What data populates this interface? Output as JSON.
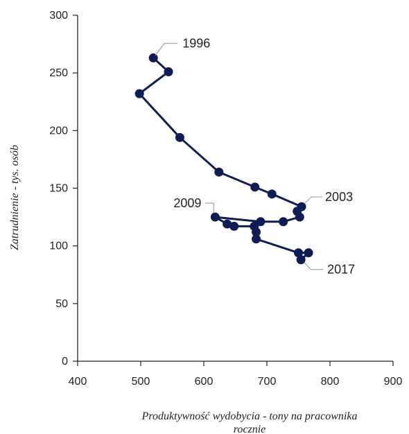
{
  "chart_data": {
    "type": "scatter",
    "xlabel_lines": [
      "Produktywność wydobycia - tony na pracownika",
      "rocznie"
    ],
    "ylabel": "Zatrudnienie - tys. osób",
    "xlim": [
      400,
      900
    ],
    "ylim": [
      0,
      300
    ],
    "x_ticks": [
      "400",
      "500",
      "600",
      "700",
      "800",
      "900"
    ],
    "y_ticks": [
      "0",
      "50",
      "100",
      "150",
      "200",
      "250",
      "300"
    ],
    "connected": true,
    "grid": false,
    "series_color": "#0f1d55",
    "points": [
      {
        "x": 520,
        "y": 263
      },
      {
        "x": 544,
        "y": 251
      },
      {
        "x": 498,
        "y": 232
      },
      {
        "x": 562,
        "y": 194
      },
      {
        "x": 624,
        "y": 164
      },
      {
        "x": 681,
        "y": 151
      },
      {
        "x": 708,
        "y": 145
      },
      {
        "x": 755,
        "y": 134
      },
      {
        "x": 748,
        "y": 130
      },
      {
        "x": 752,
        "y": 125
      },
      {
        "x": 726,
        "y": 121
      },
      {
        "x": 690,
        "y": 121
      },
      {
        "x": 618,
        "y": 125
      },
      {
        "x": 637,
        "y": 119
      },
      {
        "x": 648,
        "y": 117
      },
      {
        "x": 680,
        "y": 117
      },
      {
        "x": 683,
        "y": 112
      },
      {
        "x": 683,
        "y": 106
      },
      {
        "x": 750,
        "y": 94
      },
      {
        "x": 766,
        "y": 94
      },
      {
        "x": 754,
        "y": 88
      }
    ],
    "annotations": [
      {
        "text": "1996",
        "x": 520,
        "y": 263,
        "pos": "above-right"
      },
      {
        "text": "2003",
        "x": 755,
        "y": 134,
        "pos": "right"
      },
      {
        "text": "2009",
        "x": 618,
        "y": 125,
        "pos": "left"
      },
      {
        "text": "2017",
        "x": 754,
        "y": 88,
        "pos": "below-right"
      }
    ]
  }
}
